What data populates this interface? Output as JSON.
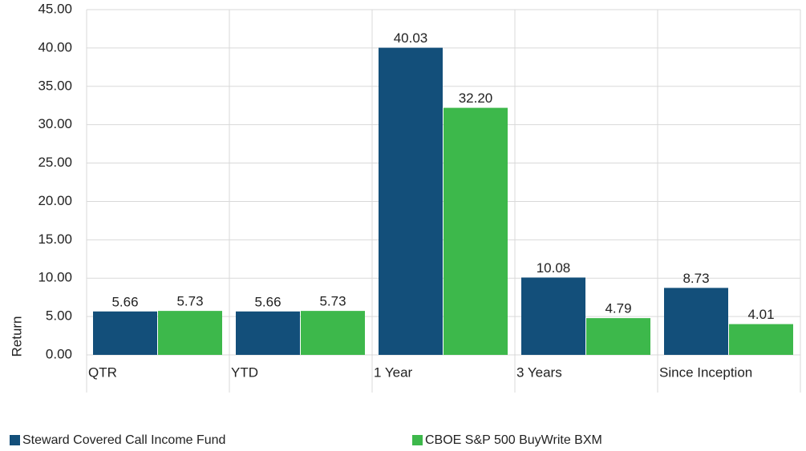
{
  "chart_data": {
    "type": "bar",
    "y_label": "Return",
    "categories": [
      "QTR",
      "YTD",
      "1 Year",
      "3 Years",
      "Since Inception"
    ],
    "series": [
      {
        "name": "Steward Covered Call Income Fund",
        "color": "#134f7a",
        "values": [
          5.66,
          5.66,
          40.03,
          10.08,
          8.73
        ],
        "value_labels": [
          "5.66",
          "5.66",
          "40.03",
          "10.08",
          "8.73"
        ]
      },
      {
        "name": "CBOE S&P 500 BuyWrite BXM",
        "color": "#3db84b",
        "values": [
          5.73,
          5.73,
          32.2,
          4.79,
          4.01
        ],
        "value_labels": [
          "5.73",
          "5.73",
          "32.20",
          "4.79",
          "4.01"
        ]
      }
    ],
    "ylim": [
      0,
      45
    ],
    "yticks": [
      {
        "value": 0,
        "label": "0.00"
      },
      {
        "value": 5,
        "label": "5.00"
      },
      {
        "value": 10,
        "label": "10.00"
      },
      {
        "value": 15,
        "label": "15.00"
      },
      {
        "value": 20,
        "label": "20.00"
      },
      {
        "value": 25,
        "label": "25.00"
      },
      {
        "value": 30,
        "label": "30.00"
      },
      {
        "value": 35,
        "label": "35.00"
      },
      {
        "value": 40,
        "label": "40.00"
      },
      {
        "value": 45,
        "label": "45.00"
      }
    ],
    "grid": true
  }
}
